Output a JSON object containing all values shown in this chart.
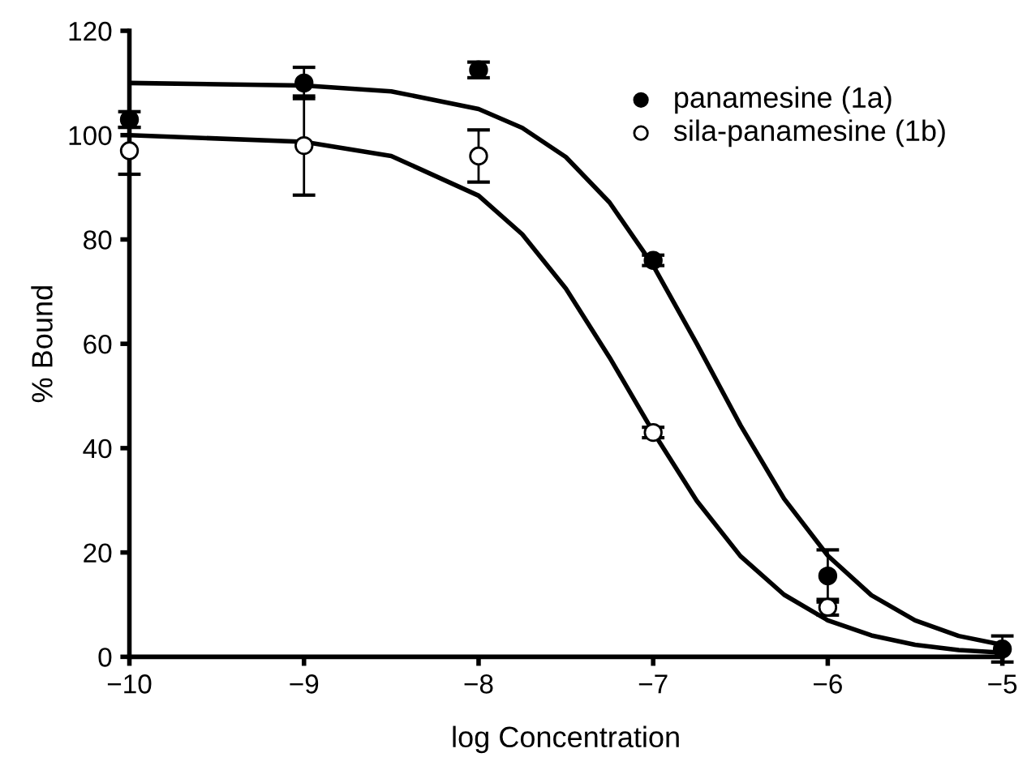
{
  "chart_data": {
    "type": "scatter",
    "xlabel": "log Concentration",
    "ylabel": "% Bound",
    "xlim": [
      -10,
      -5
    ],
    "ylim": [
      0,
      120
    ],
    "xticks": [
      {
        "value": -10,
        "label": "−10"
      },
      {
        "value": -9,
        "label": "−9"
      },
      {
        "value": -8,
        "label": "−8"
      },
      {
        "value": -7,
        "label": "−7"
      },
      {
        "value": -6,
        "label": "−6"
      },
      {
        "value": -5,
        "label": "−5"
      }
    ],
    "yticks": [
      0,
      20,
      40,
      60,
      80,
      100,
      120
    ],
    "grid": false,
    "legend": "top right",
    "series": [
      {
        "name": "panamesine (1a)",
        "marker": "circle",
        "color": "#000000",
        "x": [
          -10,
          -9,
          -8,
          -7,
          -6,
          -5
        ],
        "values": [
          103,
          110,
          112.5,
          76,
          15.5,
          1.5
        ],
        "errors": [
          1.5,
          3,
          1.5,
          1,
          5,
          2.5
        ]
      },
      {
        "name": "sila-panamesine (1b)",
        "marker": "circle",
        "color": "#ffffff",
        "x": [
          -10,
          -9,
          -8,
          -7,
          -6
        ],
        "values": [
          97,
          98,
          96,
          43,
          9.5
        ],
        "errors": [
          4.5,
          9.5,
          5,
          1,
          1.5
        ]
      },
      {
        "type": "line",
        "color": "#000000",
        "x": [
          -10,
          -9,
          -8.5,
          -8,
          -7.75,
          -7.5,
          -7.25,
          -7,
          -6.75,
          -6.5,
          -6.25,
          -6,
          -5.75,
          -5.5,
          -5.25,
          -5
        ],
        "values": [
          110,
          109.5,
          108.4,
          105,
          101.4,
          95.8,
          87.1,
          75,
          60,
          44.4,
          30.3,
          19.4,
          11.8,
          7,
          4,
          2.3
        ]
      },
      {
        "type": "line",
        "color": "#000000",
        "x": [
          -10,
          -9,
          -8.5,
          -8,
          -7.75,
          -7.5,
          -7.25,
          -7,
          -6.75,
          -6.5,
          -6.25,
          -6,
          -5.75,
          -5.5,
          -5.25,
          -5
        ],
        "values": [
          100,
          98.7,
          96,
          88.4,
          81,
          70.6,
          57.4,
          43.1,
          29.9,
          19.3,
          11.9,
          7,
          4.1,
          2.3,
          1.3,
          0.8
        ]
      }
    ]
  }
}
